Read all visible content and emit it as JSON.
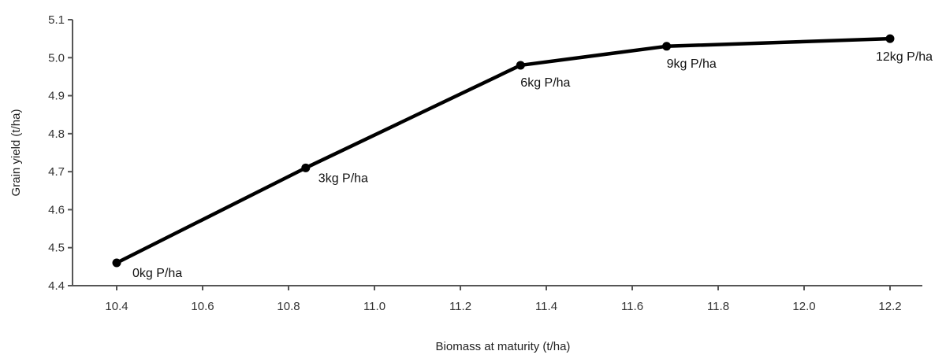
{
  "chart_data": {
    "type": "line",
    "title": "",
    "xlabel": "Biomass at maturity (t/ha)",
    "ylabel": "Grain yield (t/ha)",
    "xlim": [
      10.4,
      12.2
    ],
    "ylim": [
      4.4,
      5.1
    ],
    "xticks": [
      "10.4",
      "10.6",
      "10.8",
      "11.0",
      "11.2",
      "11.4",
      "11.6",
      "11.8",
      "12.0",
      "12.2"
    ],
    "yticks": [
      "4.4",
      "4.5",
      "4.6",
      "4.7",
      "4.8",
      "4.9",
      "5.0",
      "5.1"
    ],
    "grid": false,
    "series": [
      {
        "color": "#000000",
        "points": [
          {
            "x": 10.4,
            "y": 4.46,
            "label": "0kg P/ha"
          },
          {
            "x": 10.84,
            "y": 4.71,
            "label": "3kg P/ha"
          },
          {
            "x": 11.34,
            "y": 4.98,
            "label": "6kg P/ha"
          },
          {
            "x": 11.68,
            "y": 5.03,
            "label": "9kg P/ha"
          },
          {
            "x": 12.2,
            "y": 5.05,
            "label": "12kg P/ha"
          }
        ]
      }
    ]
  }
}
